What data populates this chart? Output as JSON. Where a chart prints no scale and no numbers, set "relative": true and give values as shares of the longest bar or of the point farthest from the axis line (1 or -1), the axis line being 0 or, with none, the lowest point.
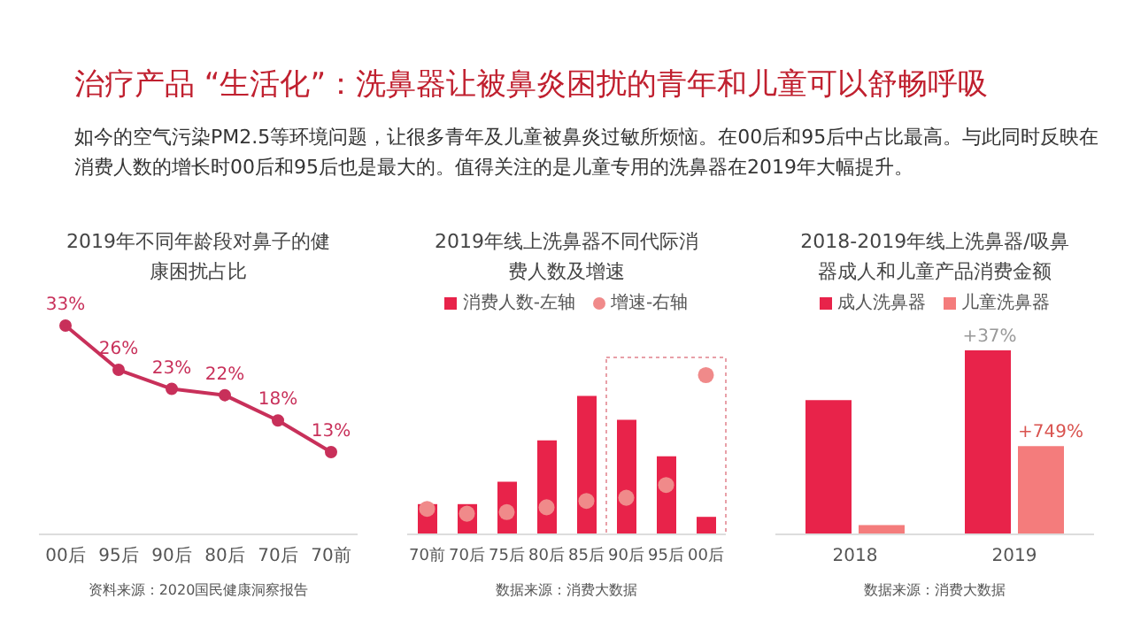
{
  "chart_data": [
    {
      "type": "other",
      "title": "治疗产品 “生活化”：洗鼻器让被鼻炎困扰的青年和儿童可以舒畅呼吸",
      "subtitle": "如今的空气污染PM2.5等环境问题，让很多青年及儿童被鼻炎过敏所烦恼。在00后和95后中占比最高。与此同时反映在消费人数的增长时00后和95后也是最大的。值得关注的是儿童专用的洗鼻器在2019年大幅提升。"
    },
    {
      "type": "line",
      "title": "2019年不同年龄段对鼻子的健康困扰占比",
      "categories": [
        "00后",
        "95后",
        "90后",
        "80后",
        "70后",
        "70前"
      ],
      "marker": "circle",
      "annotations": [
        "资料来源：2020国民健康洞察报告"
      ],
      "series": [
        {
          "color": "#c8305a",
          "values": [
            33,
            26,
            23,
            22,
            18,
            13
          ],
          "value_labels": [
            "33%",
            "26%",
            "23%",
            "22%",
            "18%",
            "13%"
          ]
        }
      ]
    },
    {
      "type": "bar",
      "title": "2019年线上洗鼻器不同代际消费人数及增速",
      "categories": [
        "70前",
        "70后",
        "75后",
        "80后",
        "85后",
        "90后",
        "95后",
        "00后"
      ],
      "relative": true,
      "legend": "top",
      "annotations": [
        "数据来源：消费大数据"
      ],
      "series": [
        {
          "name": "消费人数-左轴",
          "color": "#e8234a",
          "values": [
            0.19,
            0.19,
            0.33,
            0.59,
            0.87,
            0.72,
            0.49,
            0.11
          ]
        },
        {
          "name": "增速-右轴",
          "type": "scatter",
          "color": "#f08a8a",
          "values": [
            0.16,
            0.13,
            0.14,
            0.17,
            0.21,
            0.23,
            0.31,
            1
          ]
        }
      ]
    },
    {
      "type": "bar",
      "title": "2018-2019年线上洗鼻器/吸鼻器成人和儿童产品消费金额",
      "categories": [
        "2018",
        "2019"
      ],
      "relative": true,
      "legend": "top",
      "annotations": [
        {
          "text": "+37%",
          "x": "2019",
          "y": 1
        },
        {
          "text": "+749%",
          "x": "2019",
          "y": 0.48
        },
        "数据来源：消费大数据"
      ],
      "series": [
        {
          "name": "成人洗鼻器",
          "color": "#e8234a",
          "values": [
            0.73,
            1
          ]
        },
        {
          "name": "儿童洗鼻器",
          "color": "#f47c7c",
          "values": [
            0.05,
            0.48
          ]
        }
      ]
    }
  ]
}
